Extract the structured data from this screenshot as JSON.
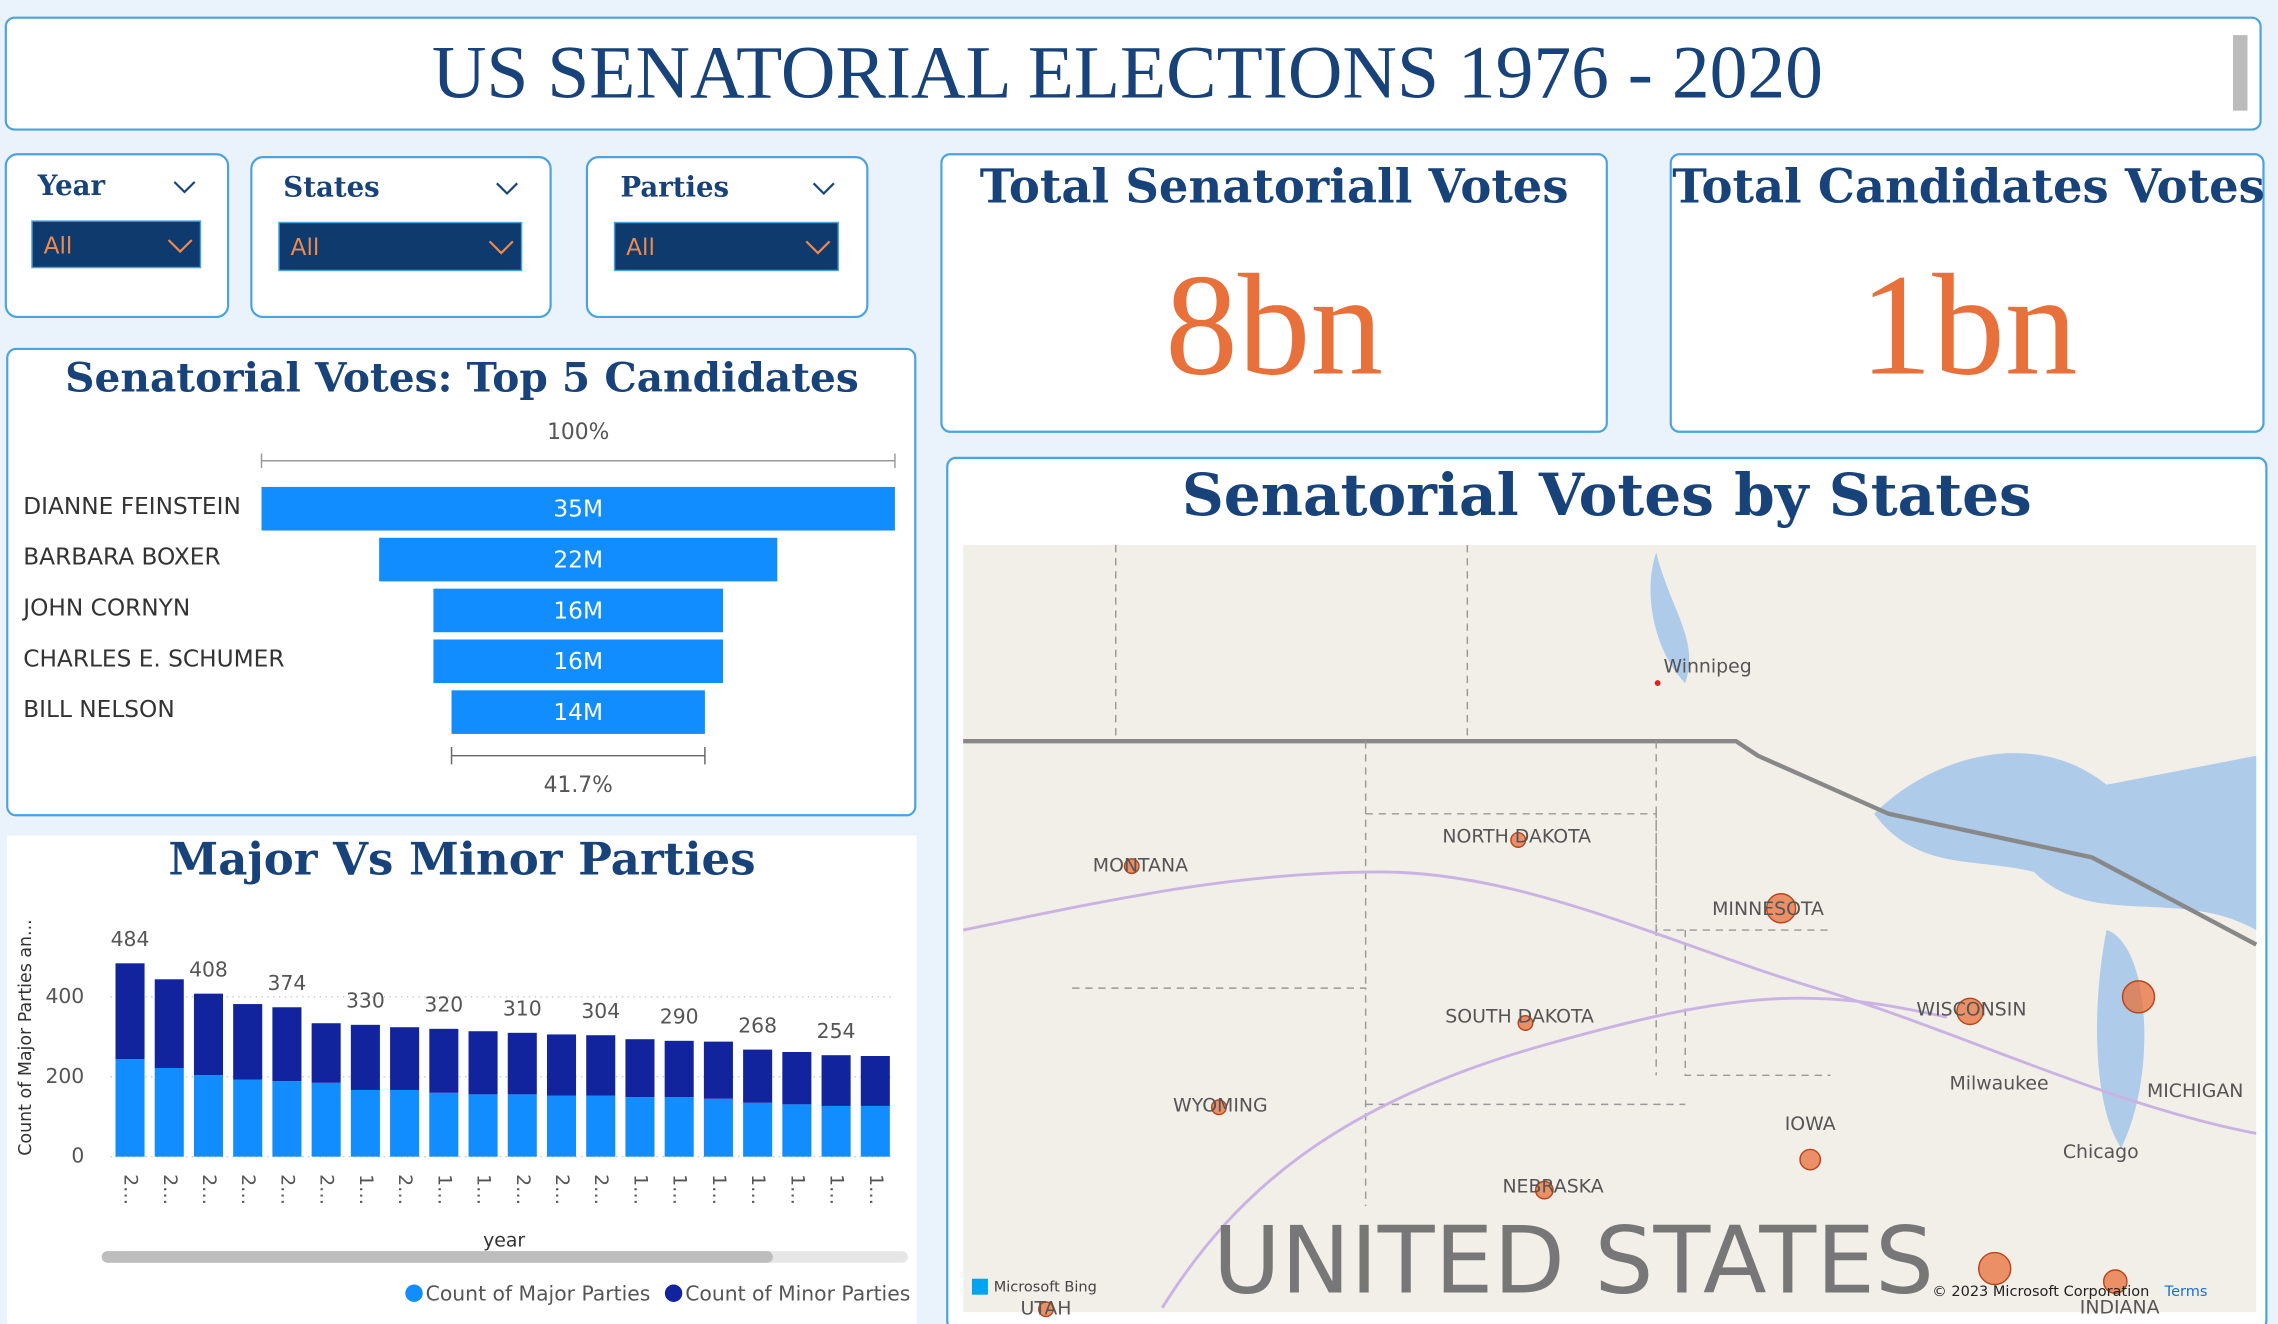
{
  "header": {
    "title": "US SENATORIAL ELECTIONS 1976 - 2020"
  },
  "slicers": [
    {
      "label": "Year",
      "value": "All"
    },
    {
      "label": "States",
      "value": "All"
    },
    {
      "label": "Parties",
      "value": "All"
    }
  ],
  "cards": [
    {
      "title": "Total Senatoriall Votes",
      "value": "8bn"
    },
    {
      "title": "Total Candidates Votes",
      "value": "1bn"
    }
  ],
  "map": {
    "title": "Senatorial Votes by States",
    "labels": [
      "Winnipeg",
      "MONTANA",
      "NORTH DAKOTA",
      "MINNESOTA",
      "SOUTH DAKOTA",
      "WISCONSIN",
      "WYOMING",
      "IOWA",
      "NEBRASKA",
      "Milwaukee",
      "MICHIGAN",
      "Chicago",
      "UTAH",
      "INDIANA"
    ],
    "country": "UNITED STATES",
    "attribution": "Microsoft Bing",
    "copyright": "© 2023 Microsoft Corporation",
    "terms": "Terms"
  },
  "chart_data": [
    {
      "type": "funnel",
      "title": "Senatorial Votes: Top 5 Candidates",
      "categories": [
        "DIANNE FEINSTEIN",
        "BARBARA BOXER",
        "JOHN CORNYN",
        "CHARLES E. SCHUMER",
        "BILL NELSON"
      ],
      "values": [
        35,
        22,
        16,
        16,
        14
      ],
      "value_labels": [
        "35M",
        "22M",
        "16M",
        "16M",
        "14M"
      ],
      "top_label": "100%",
      "bottom_label": "41.7%",
      "color": "#118dff"
    },
    {
      "type": "stacked_bar",
      "title": "Major Vs Minor Parties",
      "x_label": "year",
      "y_label": "Count of Major Parties an...",
      "categories": [
        "2…",
        "2…",
        "2…",
        "2…",
        "2…",
        "2…",
        "1…",
        "2…",
        "1…",
        "1…",
        "2…",
        "2…",
        "2…",
        "1…",
        "1…",
        "1…",
        "1…",
        "1…",
        "1…",
        "1…"
      ],
      "series": [
        {
          "name": "Count of Major Parties",
          "color": "#118dff",
          "values": [
            244,
            222,
            204,
            193,
            189,
            185,
            167,
            167,
            160,
            156,
            156,
            153,
            153,
            149,
            149,
            145,
            135,
            131,
            127,
            127
          ]
        },
        {
          "name": "Count of Minor Parties",
          "color": "#12239e",
          "values": [
            240,
            222,
            204,
            189,
            185,
            149,
            163,
            157,
            160,
            158,
            154,
            153,
            151,
            145,
            141,
            143,
            133,
            131,
            127,
            125
          ]
        }
      ],
      "totals": [
        484,
        null,
        408,
        null,
        374,
        null,
        330,
        null,
        320,
        null,
        310,
        null,
        304,
        null,
        290,
        null,
        268,
        null,
        254,
        null
      ],
      "ylim": [
        0,
        500
      ],
      "yticks": [
        0,
        200,
        400
      ],
      "grid": true
    }
  ]
}
